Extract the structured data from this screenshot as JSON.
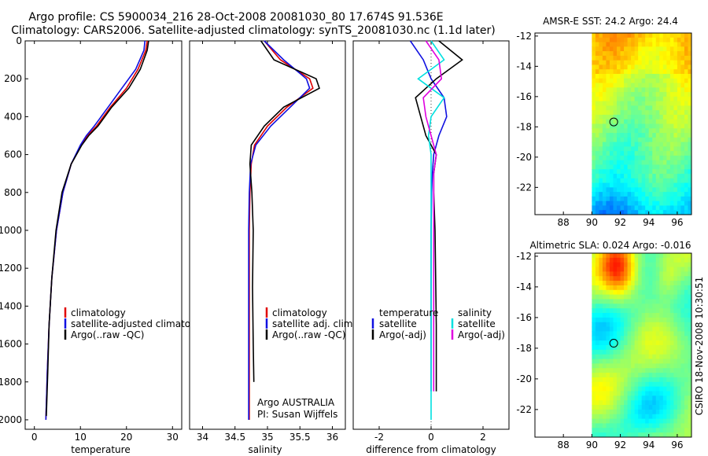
{
  "title": {
    "line1": "Argo profile: CS 5900034_216 28-Oct-2008 20081030_80 17.674S 91.536E",
    "line2": "Climatology: CARS2006. Satellite-adjusted climatology: synTS_20081030.nc (1.1d later)"
  },
  "side_label": "CSIRO 18-Nov-2008 10:30:51",
  "colors": {
    "climatology": "#e00000",
    "satellite": "#1010e0",
    "argo": "#000000",
    "salinity_sat": "#00e0e0",
    "salinity_argo": "#e000e0"
  },
  "chart_data": [
    {
      "type": "line",
      "name": "temperature-panel",
      "xlabel": "temperature",
      "xlim": [
        -2,
        32
      ],
      "ylim": [
        2050,
        0
      ],
      "xticks": [
        0,
        10,
        20,
        30
      ],
      "yticks": [
        0,
        200,
        400,
        600,
        800,
        1000,
        1200,
        1400,
        1600,
        1800,
        2000
      ],
      "legend": [
        "climatology",
        "satellite-adjusted climatology",
        "Argo(..raw -QC)"
      ],
      "series": [
        {
          "name": "climatology",
          "color": "#e00000",
          "x": [
            24.5,
            24.2,
            22.5,
            20.0,
            16.5,
            13.5,
            11.5,
            10.2,
            8.0,
            6.2,
            4.8,
            3.8,
            3.2,
            2.8,
            2.5
          ],
          "y": [
            0,
            50,
            150,
            250,
            350,
            450,
            500,
            550,
            650,
            800,
            1000,
            1250,
            1500,
            1750,
            2000
          ]
        },
        {
          "name": "satellite-adjusted climatology",
          "color": "#1010e0",
          "x": [
            24.0,
            23.8,
            22.0,
            19.0,
            16.0,
            13.0,
            11.3,
            10.0,
            8.0,
            6.2,
            4.8,
            3.8,
            3.2,
            2.8,
            2.5
          ],
          "y": [
            0,
            50,
            150,
            250,
            350,
            450,
            500,
            550,
            650,
            800,
            1000,
            1250,
            1500,
            1750,
            2000
          ]
        },
        {
          "name": "Argo(..raw -QC)",
          "color": "#000000",
          "x": [
            24.8,
            24.5,
            23.0,
            20.5,
            16.8,
            13.8,
            11.8,
            10.3,
            8.0,
            6.0,
            4.7,
            3.8,
            3.2,
            2.9,
            2.6
          ],
          "y": [
            0,
            50,
            150,
            250,
            350,
            450,
            500,
            550,
            650,
            800,
            1000,
            1250,
            1500,
            1750,
            1980
          ]
        }
      ]
    },
    {
      "type": "line",
      "name": "salinity-panel",
      "xlabel": "salinity",
      "xlim": [
        33.8,
        36.2
      ],
      "ylim": [
        2050,
        0
      ],
      "xticks": [
        34,
        34.5,
        35,
        35.5,
        36
      ],
      "legend": [
        "climatology",
        "satellite adj. clim.",
        "Argo(..raw -QC)"
      ],
      "annotation": [
        "Argo AUSTRALIA",
        "PI: Susan Wijffels"
      ],
      "series": [
        {
          "name": "climatology",
          "color": "#e00000",
          "x": [
            34.95,
            35.2,
            35.65,
            35.7,
            35.3,
            35.0,
            34.8,
            34.75,
            34.73,
            34.72,
            34.72,
            34.72,
            34.72,
            34.72
          ],
          "y": [
            0,
            100,
            200,
            250,
            350,
            450,
            550,
            650,
            800,
            1000,
            1300,
            1600,
            1800,
            2000
          ]
        },
        {
          "name": "satellite adj. clim.",
          "color": "#1010e0",
          "x": [
            34.95,
            35.25,
            35.6,
            35.65,
            35.35,
            35.05,
            34.82,
            34.74,
            34.72,
            34.71,
            34.71,
            34.71,
            34.71,
            34.71
          ],
          "y": [
            0,
            100,
            200,
            250,
            350,
            450,
            550,
            650,
            800,
            1000,
            1300,
            1600,
            1800,
            2000
          ]
        },
        {
          "name": "Argo(..raw -QC)",
          "color": "#000000",
          "x": [
            34.9,
            35.1,
            35.75,
            35.8,
            35.25,
            34.95,
            34.75,
            34.73,
            34.76,
            34.78,
            34.77,
            34.78,
            34.79
          ],
          "y": [
            0,
            100,
            200,
            250,
            350,
            450,
            550,
            650,
            800,
            1000,
            1300,
            1600,
            1800
          ]
        }
      ]
    },
    {
      "type": "line",
      "name": "difference-panel",
      "xlabel": "difference from climatology",
      "xlim": [
        -3,
        3
      ],
      "ylim": [
        2050,
        0
      ],
      "xticks": [
        -2,
        0,
        2
      ],
      "legend": [
        "temperature",
        "satellite",
        "Argo(-adj)",
        "salinity",
        "satellite",
        "Argo(-adj)"
      ],
      "series": [
        {
          "name": "temperature satellite",
          "color": "#1010e0",
          "x": [
            -0.8,
            -0.3,
            0.0,
            0.5,
            0.6,
            0.3,
            0.1,
            0.05,
            0.02,
            0.0,
            0.0,
            0.0
          ],
          "y": [
            0,
            100,
            200,
            300,
            400,
            500,
            600,
            700,
            800,
            1000,
            1500,
            1850
          ]
        },
        {
          "name": "temperature Argo(-adj)",
          "color": "#000000",
          "x": [
            0.3,
            1.2,
            0.2,
            -0.6,
            -0.4,
            -0.2,
            0.2,
            0.1,
            0.1,
            0.15,
            0.2,
            0.2
          ],
          "y": [
            0,
            100,
            200,
            300,
            400,
            500,
            600,
            700,
            800,
            1000,
            1500,
            1850
          ]
        },
        {
          "name": "salinity satellite",
          "color": "#00e0e0",
          "x": [
            0.0,
            0.5,
            -0.5,
            0.5,
            0.0,
            -0.1,
            0.0,
            0.0,
            0.0,
            0.0,
            0.0,
            0.0
          ],
          "y": [
            0,
            100,
            200,
            300,
            400,
            500,
            600,
            700,
            800,
            1000,
            1500,
            2000
          ]
        },
        {
          "name": "salinity Argo(-adj)",
          "color": "#e000e0",
          "x": [
            -0.2,
            0.3,
            0.4,
            -0.3,
            -0.2,
            0.0,
            0.2,
            0.1,
            0.1,
            0.1,
            0.1,
            0.1
          ],
          "y": [
            0,
            100,
            200,
            300,
            400,
            500,
            600,
            700,
            800,
            1000,
            1500,
            1850
          ]
        }
      ]
    },
    {
      "type": "heatmap",
      "name": "sst-map",
      "title": "AMSR-E SST: 24.2 Argo: 24.4",
      "xlim": [
        86,
        97
      ],
      "ylim": [
        -23.8,
        -11.8
      ],
      "xticks": [
        88,
        90,
        92,
        94,
        96
      ],
      "yticks": [
        -12,
        -14,
        -16,
        -18,
        -20,
        -22
      ],
      "argo_position": [
        91.536,
        -17.674
      ]
    },
    {
      "type": "heatmap",
      "name": "sla-map",
      "title": "Altimetric SLA: 0.024 Argo: -0.016",
      "xlim": [
        86,
        97
      ],
      "ylim": [
        -23.8,
        -11.8
      ],
      "xticks": [
        88,
        90,
        92,
        94,
        96
      ],
      "yticks": [
        -12,
        -14,
        -16,
        -18,
        -20,
        -22
      ],
      "argo_position": [
        91.536,
        -17.674
      ]
    }
  ]
}
